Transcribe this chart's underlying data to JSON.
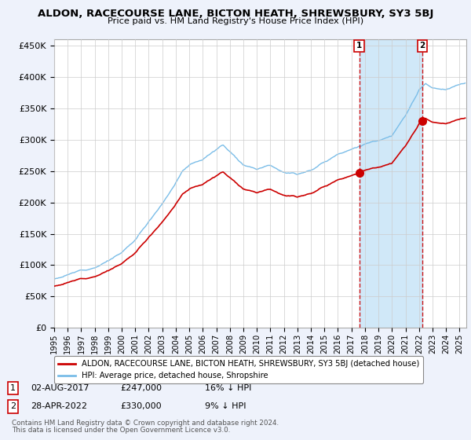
{
  "title": "ALDON, RACECOURSE LANE, BICTON HEATH, SHREWSBURY, SY3 5BJ",
  "subtitle": "Price paid vs. HM Land Registry's House Price Index (HPI)",
  "yticks": [
    0,
    50000,
    100000,
    150000,
    200000,
    250000,
    300000,
    350000,
    400000,
    450000
  ],
  "ylim": [
    0,
    460000
  ],
  "xlim_start": 1995,
  "xlim_end": 2025.5,
  "hpi_color": "#7abde8",
  "price_color": "#cc0000",
  "sale1_t": 2017.583,
  "sale1_price": 247000,
  "sale1_date": "02-AUG-2017",
  "sale1_label": "16% ↓ HPI",
  "sale2_t": 2022.25,
  "sale2_price": 330000,
  "sale2_date": "28-APR-2022",
  "sale2_label": "9% ↓ HPI",
  "legend_line1": "ALDON, RACECOURSE LANE, BICTON HEATH, SHREWSBURY, SY3 5BJ (detached house)",
  "legend_line2": "HPI: Average price, detached house, Shropshire",
  "footnote1": "Contains HM Land Registry data © Crown copyright and database right 2024.",
  "footnote2": "This data is licensed under the Open Government Licence v3.0.",
  "background_color": "#eef2fb",
  "plot_bg": "#ffffff",
  "shade_color": "#d0e8f8",
  "grid_color": "#cccccc"
}
